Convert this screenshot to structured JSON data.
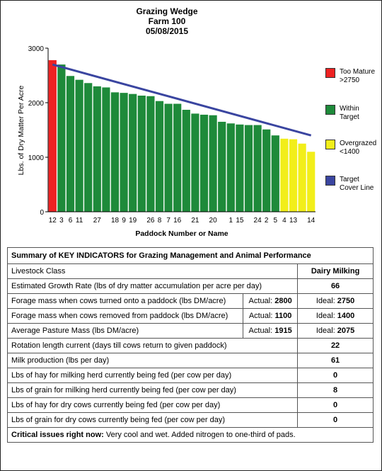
{
  "chart_data": {
    "type": "bar",
    "title": [
      "Grazing Wedge",
      "Farm 100",
      "05/08/2015"
    ],
    "xlabel": "Paddock Number or Name",
    "ylabel": "Lbs. of Dry Matter Per Acre",
    "ylim": [
      0,
      3000
    ],
    "yticks": [
      0,
      1000,
      2000,
      3000
    ],
    "categories": [
      "12",
      "3",
      "6",
      "11",
      "",
      "27",
      "",
      "18",
      "9",
      "19",
      "",
      "26",
      "8",
      "7",
      "16",
      "",
      "21",
      "",
      "20",
      "",
      "1",
      "15",
      "",
      "24",
      "2",
      "5",
      "4",
      "13",
      "",
      "14"
    ],
    "values": [
      2780,
      2700,
      2490,
      2420,
      2360,
      2300,
      2280,
      2190,
      2180,
      2160,
      2130,
      2120,
      2030,
      1980,
      1980,
      1870,
      1800,
      1780,
      1770,
      1650,
      1620,
      1600,
      1590,
      1590,
      1510,
      1400,
      1340,
      1330,
      1250,
      1100
    ],
    "bar_categories": [
      "too-mature",
      "within",
      "within",
      "within",
      "within",
      "within",
      "within",
      "within",
      "within",
      "within",
      "within",
      "within",
      "within",
      "within",
      "within",
      "within",
      "within",
      "within",
      "within",
      "within",
      "within",
      "within",
      "within",
      "within",
      "within",
      "within",
      "overgrazed",
      "overgrazed",
      "overgrazed",
      "overgrazed"
    ],
    "target_line": {
      "start": 2700,
      "end": 1400
    },
    "legend": [
      {
        "key": "too-mature",
        "label": [
          "Too Mature",
          ">2750"
        ],
        "color": "#ee2222"
      },
      {
        "key": "within",
        "label": [
          "Within",
          "Target"
        ],
        "color": "#1e8a3a"
      },
      {
        "key": "overgrazed",
        "label": [
          "Overgrazed",
          "<1400"
        ],
        "color": "#f2ee1a"
      },
      {
        "key": "target",
        "label": [
          "Target",
          "Cover Line"
        ],
        "color": "#3a45a0"
      }
    ],
    "legend_position": "right"
  },
  "summary": {
    "title": "Summary of KEY INDICATORS for Grazing Management and Animal Performance",
    "rows": [
      {
        "label": "Livestock Class",
        "value": "Dairy Milking"
      },
      {
        "label": "Estimated Growth Rate (lbs of dry matter accumulation per acre per day)",
        "value": "66"
      },
      {
        "label": "Forage mass when cows turned onto a paddock (lbs DM/acre)",
        "actual_label": "Actual:",
        "actual": "2800",
        "ideal_label": "Ideal:",
        "ideal": "2750"
      },
      {
        "label": "Forage mass when cows removed from paddock (lbs DM/acre)",
        "actual_label": "Actual:",
        "actual": "1100",
        "ideal_label": "Ideal:",
        "ideal": "1400"
      },
      {
        "label": "Average Pasture Mass (lbs DM/acre)",
        "actual_label": "Actual:",
        "actual": "1915",
        "ideal_label": "Ideal:",
        "ideal": "2075"
      },
      {
        "label": "Rotation length current (days till cows return to given paddock)",
        "value": "22"
      },
      {
        "label": "Milk production (lbs per day)",
        "value": "61"
      },
      {
        "label": "Lbs of hay for milking herd currently being fed (per cow per day)",
        "value": "0"
      },
      {
        "label": "Lbs of grain for milking herd currently being fed (per cow per day)",
        "value": "8"
      },
      {
        "label": "Lbs of hay for dry cows currently being fed (per cow per day)",
        "value": "0"
      },
      {
        "label": "Lbs of grain for dry cows currently being fed (per cow per day)",
        "value": "0"
      }
    ],
    "critical_label": "Critical issues right now:",
    "critical_text": "Very cool and wet. Added nitrogen to one-third of pads."
  }
}
